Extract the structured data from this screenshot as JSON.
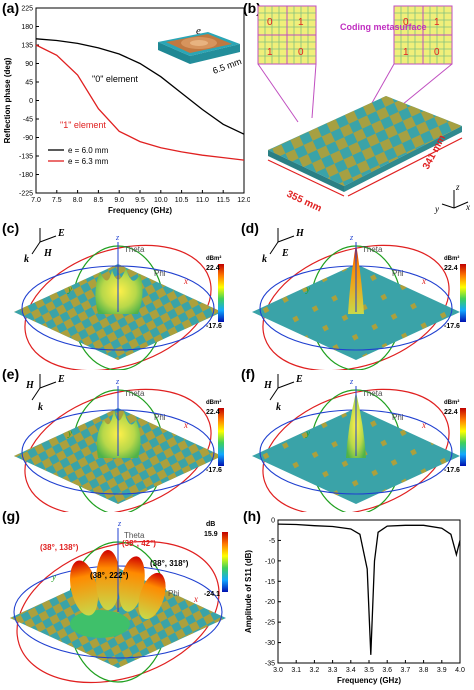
{
  "panels": {
    "a": {
      "label": "(a)",
      "legend": [
        "e = 6.0 mm",
        "e = 6.3 mm"
      ],
      "ann_zero": "\"0\" element",
      "ann_one": "\"1\" element",
      "inset_e": "e",
      "inset_dim": "6.5 mm"
    },
    "b": {
      "label": "(b)",
      "coding_label": "Coding metasurface",
      "left_bits": [
        "0",
        "1",
        "1",
        "0"
      ],
      "right_bits": [
        "0",
        "1",
        "1",
        "0"
      ],
      "dim_x": "355 mm",
      "dim_y": "341 mm",
      "axes": [
        "z",
        "x",
        "y"
      ]
    },
    "c": {
      "label": "(c)",
      "field_a": "E",
      "field_b": "H",
      "k": "k",
      "cb_unit": "dBm²",
      "cb_max": "22.4",
      "cb_min": "-17.6"
    },
    "d": {
      "label": "(d)",
      "field_a": "H",
      "field_b": "E",
      "k": "k",
      "cb_unit": "dBm²",
      "cb_max": "22.4",
      "cb_min": "-17.6"
    },
    "e": {
      "label": "(e)",
      "field_a": "H",
      "field_b": "E",
      "k": "k",
      "cb_unit": "dBm²",
      "cb_max": "22.4",
      "cb_min": "-17.6"
    },
    "f": {
      "label": "(f)",
      "field_a": "H",
      "field_b": "E",
      "k": "k",
      "cb_unit": "dBm²",
      "cb_max": "22.4",
      "cb_min": "-17.6"
    },
    "g": {
      "label": "(g)",
      "cb_unit": "dB",
      "cb_max": "15.9",
      "cb_min": "-24.1",
      "beams": [
        "(38°, 138°)",
        "(38°, 42°)",
        "(38°, 318°)",
        "(38°, 222°)"
      ]
    },
    "h": {
      "label": "(h)"
    },
    "sphere_labels": {
      "theta": "Theta",
      "phi": "Phi",
      "x": "x",
      "y": "y",
      "z": "z"
    }
  },
  "chart_data": [
    {
      "type": "line",
      "title": "",
      "xlabel": "Frequency (GHz)",
      "ylabel": "Reflection phase (deg)",
      "xlim": [
        7.0,
        12.0
      ],
      "ylim": [
        -225,
        225
      ],
      "xticks": [
        "7.0",
        "7.5",
        "8.0",
        "8.5",
        "9.0",
        "9.5",
        "10.0",
        "10.5",
        "11.0",
        "11.5",
        "12.0"
      ],
      "yticks": [
        "225",
        "180",
        "135",
        "90",
        "45",
        "0",
        "-45",
        "-90",
        "-135",
        "-180",
        "-225"
      ],
      "series": [
        {
          "name": "e = 6.0 mm",
          "color": "#000000",
          "x": [
            7.0,
            7.5,
            8.0,
            8.5,
            9.0,
            9.5,
            10.0,
            10.5,
            11.0,
            11.5,
            12.0
          ],
          "y": [
            150,
            146,
            139,
            128,
            113,
            90,
            58,
            18,
            -22,
            -58,
            -82
          ]
        },
        {
          "name": "e = 6.3 mm",
          "color": "#e02020",
          "x": [
            7.0,
            7.5,
            8.0,
            8.5,
            9.0,
            9.5,
            10.0,
            10.5,
            11.0,
            11.5,
            12.0
          ],
          "y": [
            135,
            110,
            62,
            -20,
            -75,
            -100,
            -115,
            -125,
            -133,
            -139,
            -145
          ]
        }
      ]
    },
    {
      "type": "line",
      "title": "",
      "xlabel": "Frequency (GHz)",
      "ylabel": "Amplitude of S11 (dB)",
      "xlim": [
        3.0,
        4.0
      ],
      "ylim": [
        -35,
        0
      ],
      "xticks": [
        "3.0",
        "3.1",
        "3.2",
        "3.3",
        "3.4",
        "3.5",
        "3.6",
        "3.7",
        "3.8",
        "3.9",
        "4.0"
      ],
      "yticks": [
        "0",
        "-5",
        "-10",
        "-15",
        "-20",
        "-25",
        "-30",
        "-35"
      ],
      "series": [
        {
          "name": "",
          "color": "#000000",
          "x": [
            3.0,
            3.1,
            3.2,
            3.3,
            3.4,
            3.45,
            3.49,
            3.51,
            3.53,
            3.55,
            3.6,
            3.7,
            3.8,
            3.9,
            3.95,
            3.98,
            4.0
          ],
          "y": [
            -1.0,
            -1.1,
            -1.4,
            -1.6,
            -2.2,
            -3.5,
            -12,
            -33,
            -10,
            -3,
            -1.5,
            -1.3,
            -1.3,
            -2.0,
            -3.5,
            -8.5,
            -5
          ]
        }
      ]
    }
  ]
}
